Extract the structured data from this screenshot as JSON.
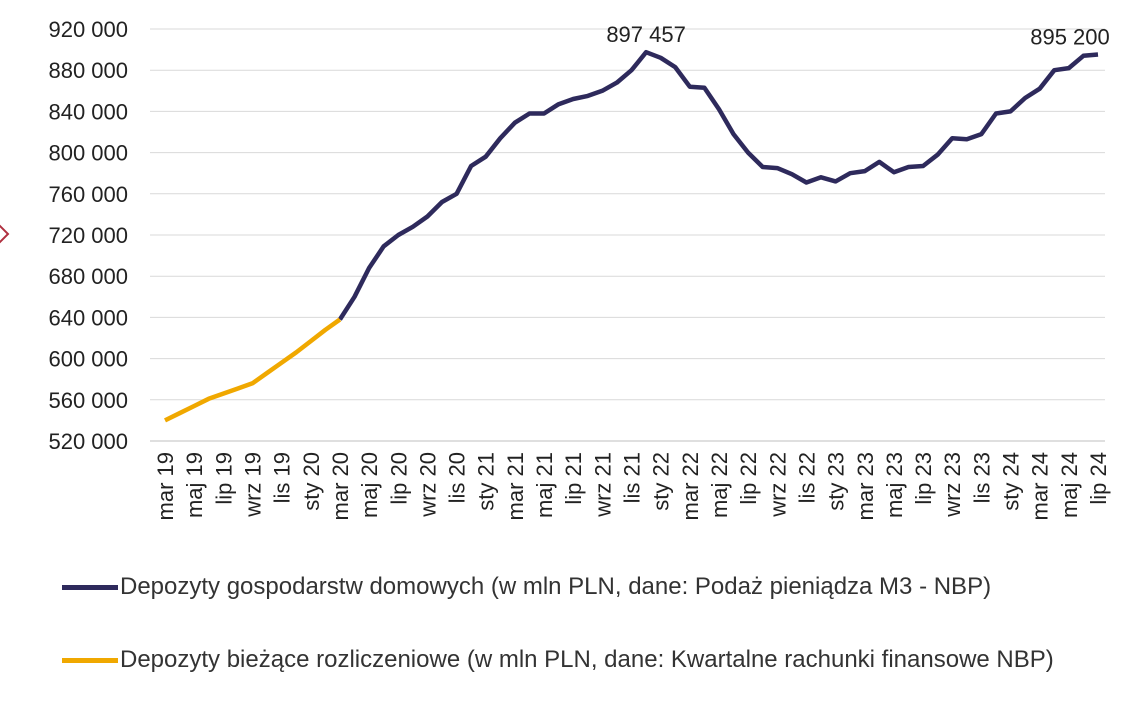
{
  "chart_data": {
    "type": "line",
    "categories": [
      "mar 19",
      null,
      "maj 19",
      null,
      "lip 19",
      null,
      "wrz 19",
      null,
      "lis 19",
      null,
      "sty 20",
      null,
      "mar 20",
      null,
      "maj 20",
      null,
      "lip 20",
      null,
      "wrz 20",
      null,
      "lis 20",
      null,
      "sty 21",
      null,
      "mar 21",
      null,
      "maj 21",
      null,
      "lip 21",
      null,
      "wrz 21",
      null,
      "lis 21",
      null,
      "sty 22",
      null,
      "mar 22",
      null,
      "maj 22",
      null,
      "lip 22",
      null,
      "wrz 22",
      null,
      "lis 22",
      null,
      "sty 23",
      null,
      "mar 23",
      null,
      "maj 23",
      null,
      "lip 23",
      null,
      "wrz 23",
      null,
      "lis 23",
      null,
      "sty 24",
      null,
      "mar 24",
      null,
      "maj 24",
      null,
      "lip 24"
    ],
    "series": [
      {
        "name": "Depozyty gospodarstw domowych (w mln PLN, dane: Podaż pieniądza M3 - NBP)",
        "color": "#2e2a5c",
        "values": [
          null,
          null,
          null,
          null,
          null,
          null,
          null,
          null,
          null,
          null,
          null,
          null,
          638000,
          660000,
          688000,
          709000,
          720000,
          728000,
          738000,
          752000,
          760000,
          787000,
          796000,
          814000,
          829000,
          838000,
          838000,
          847000,
          852000,
          855000,
          860000,
          868000,
          880000,
          897457,
          892000,
          883000,
          864000,
          863000,
          842000,
          818000,
          800000,
          786000,
          785000,
          779000,
          771000,
          776000,
          772000,
          780000,
          782000,
          791000,
          781000,
          786000,
          787000,
          798000,
          814000,
          813000,
          818000,
          838000,
          840000,
          853000,
          862000,
          880000,
          882000,
          894000,
          895200
        ],
        "value_labels": [
          null,
          null,
          null,
          null,
          null,
          null,
          null,
          null,
          null,
          null,
          null,
          null,
          null,
          null,
          null,
          null,
          null,
          null,
          null,
          null,
          null,
          null,
          null,
          null,
          null,
          null,
          null,
          null,
          null,
          null,
          null,
          null,
          null,
          "897 457",
          null,
          null,
          null,
          null,
          null,
          null,
          null,
          null,
          null,
          null,
          null,
          null,
          null,
          null,
          null,
          null,
          null,
          null,
          null,
          null,
          null,
          null,
          null,
          null,
          null,
          null,
          null,
          null,
          null,
          null,
          "895 200"
        ]
      },
      {
        "name": "Depozyty bieżące rozliczeniowe (w mln PLN, dane: Kwartalne rachunki finansowe NBP)",
        "color": "#f0a800",
        "values": [
          540000,
          547000,
          554000,
          561000,
          566000,
          571000,
          576000,
          586000,
          596000,
          606000,
          617000,
          628000,
          638000,
          null,
          null,
          null,
          null,
          null,
          null,
          null,
          null,
          null,
          null,
          null,
          null,
          null,
          null,
          null,
          null,
          null,
          null,
          null,
          null,
          null,
          null,
          null,
          null,
          null,
          null,
          null,
          null,
          null,
          null,
          null,
          null,
          null,
          null,
          null,
          null,
          null,
          null,
          null,
          null,
          null,
          null,
          null,
          null,
          null,
          null,
          null,
          null,
          null,
          null,
          null,
          null
        ]
      }
    ],
    "ylim": [
      520000,
      920000
    ],
    "yticks": [
      {
        "value": 520000,
        "label": "520 000"
      },
      {
        "value": 560000,
        "label": "560 000"
      },
      {
        "value": 600000,
        "label": "600 000"
      },
      {
        "value": 640000,
        "label": "640 000"
      },
      {
        "value": 680000,
        "label": "680 000"
      },
      {
        "value": 720000,
        "label": "720 000"
      },
      {
        "value": 760000,
        "label": "760 000"
      },
      {
        "value": 800000,
        "label": "800 000"
      },
      {
        "value": 840000,
        "label": "840 000"
      },
      {
        "value": 880000,
        "label": "880 000"
      },
      {
        "value": 920000,
        "label": "920 000"
      }
    ],
    "grid": true
  }
}
